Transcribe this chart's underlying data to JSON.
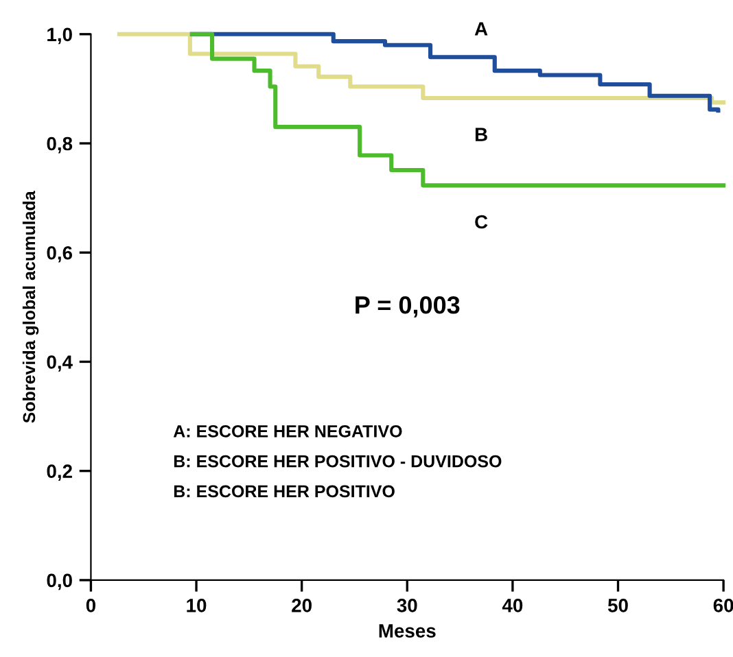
{
  "chart_data": {
    "type": "step",
    "xlabel": "Meses",
    "ylabel": "Sobrevida global acumulada",
    "xlim": [
      0,
      60
    ],
    "xticks": [
      0,
      10,
      20,
      30,
      40,
      50,
      60
    ],
    "ylim": [
      0,
      1.0
    ],
    "yticks": [
      {
        "value": 0,
        "label": "0,0"
      },
      {
        "value": 0.2,
        "label": "0,2"
      },
      {
        "value": 0.4,
        "label": "0,4"
      },
      {
        "value": 0.6,
        "label": "0,6"
      },
      {
        "value": 0.8,
        "label": "0,8"
      },
      {
        "value": 1.0,
        "label": "1,0"
      }
    ],
    "grid": false,
    "legend": false,
    "series": [
      {
        "name": "B",
        "color": "#e0dc8c",
        "x": [
          2.7,
          9.4,
          19.4,
          21.6,
          24.6,
          31.5,
          58.9,
          60
        ],
        "values": [
          1.0,
          0.964,
          0.941,
          0.922,
          0.904,
          0.883,
          0.875,
          0.875
        ]
      },
      {
        "name": "A",
        "color": "#1f4e9c",
        "x": [
          9.6,
          11.8,
          23,
          27.9,
          32.2,
          38.3,
          42.6,
          48.3,
          53,
          58.7,
          59.5
        ],
        "values": [
          1.0,
          1.0,
          0.987,
          0.98,
          0.958,
          0.933,
          0.925,
          0.908,
          0.887,
          0.862,
          0.86
        ]
      },
      {
        "name": "C",
        "color": "#4cbb2c",
        "x": [
          9.6,
          11.5,
          15.5,
          17,
          17.5,
          25.5,
          28.5,
          31.5,
          60
        ],
        "values": [
          1.0,
          0.955,
          0.933,
          0.904,
          0.83,
          0.778,
          0.751,
          0.723,
          0.723
        ]
      }
    ],
    "annotations": [
      "P = 0,003",
      "A: ESCORE HER NEGATIVO",
      "B: ESCORE HER POSITIVO - DUVIDOSO",
      "B: ESCORE HER POSITIVO"
    ]
  }
}
